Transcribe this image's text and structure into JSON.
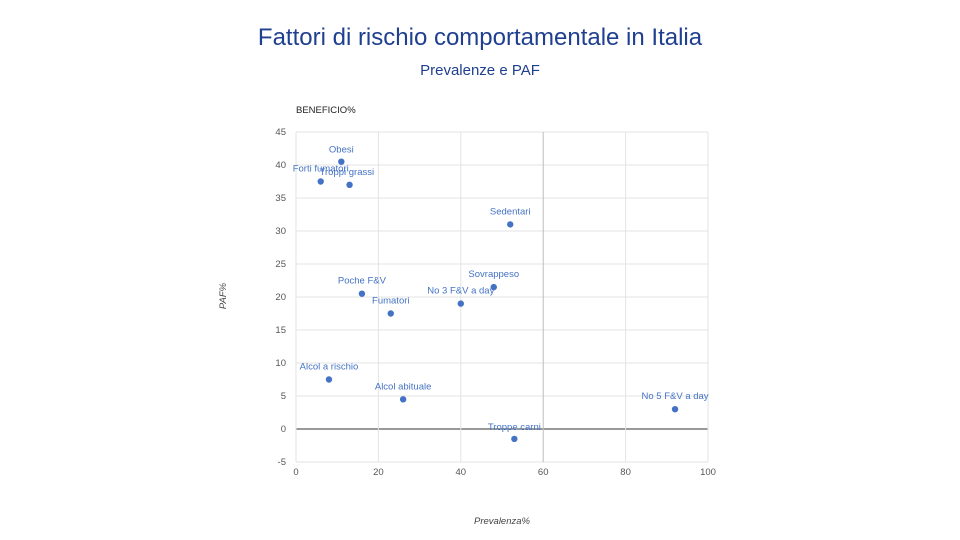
{
  "slide": {
    "title": "Fattori di rischio comportamentale in Italia",
    "subtitle": "Prevalenze e PAF"
  },
  "chart_data": {
    "type": "scatter",
    "title": "",
    "corner_label": "BENEFICIO%",
    "xlabel": "Prevalenza%",
    "ylabel": "PAF%",
    "xlim": [
      0,
      100
    ],
    "ylim": [
      -5,
      45
    ],
    "xticks": [
      0,
      20,
      40,
      60,
      80,
      100
    ],
    "yticks": [
      -5,
      0,
      5,
      10,
      15,
      20,
      25,
      30,
      35,
      40,
      45
    ],
    "grid": true,
    "point_color": "#4472c4",
    "points": [
      {
        "label": "Obesi",
        "x": 11,
        "y": 40.5
      },
      {
        "label": "Forti fumatori",
        "x": 6,
        "y": 37.5
      },
      {
        "label": "Troppi grassi",
        "x": 13,
        "y": 37
      },
      {
        "label": "Sedentari",
        "x": 52,
        "y": 31
      },
      {
        "label": "Sovrappeso",
        "x": 48,
        "y": 21.5
      },
      {
        "label": "Poche F&V",
        "x": 16,
        "y": 20.5
      },
      {
        "label": "No 3 F&V a day",
        "x": 40,
        "y": 19
      },
      {
        "label": "Fumatori",
        "x": 23,
        "y": 17.5
      },
      {
        "label": "Alcol a rischio",
        "x": 8,
        "y": 7.5
      },
      {
        "label": "Alcol abituale",
        "x": 26,
        "y": 4.5
      },
      {
        "label": "No 5 F&V a day",
        "x": 92,
        "y": 3
      },
      {
        "label": "Troppe carni",
        "x": 53,
        "y": -1.5
      }
    ]
  }
}
